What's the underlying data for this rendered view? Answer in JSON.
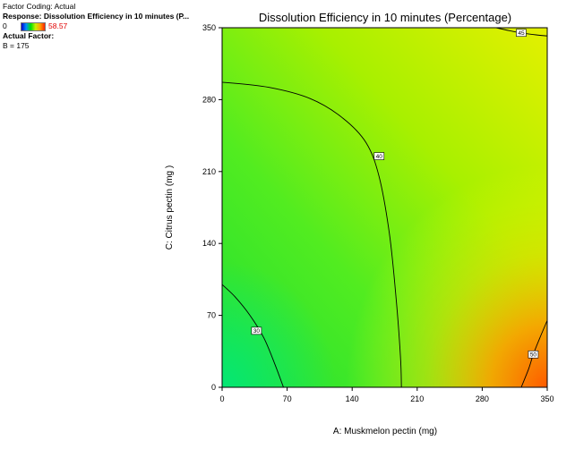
{
  "legend": {
    "coding": "Factor Coding: Actual",
    "response": "Response: Dissolution Efficiency in 10 minutes  (P...",
    "scale_min": "0",
    "scale_max": "58.57",
    "actual_factor_heading": "Actual Factor:",
    "actual_factor_value": "B = 175"
  },
  "chart_data": {
    "type": "contour",
    "title": "Dissolution Efficiency in 10 minutes  (Percentage)",
    "xlabel": "A: Muskmelon pectin (mg)",
    "ylabel": "C: Citrus pectin (mg )",
    "xlim": [
      0,
      350
    ],
    "ylim": [
      0,
      350
    ],
    "xticks": [
      "0",
      "70",
      "140",
      "210",
      "280",
      "350"
    ],
    "yticks": [
      "0",
      "70",
      "140",
      "210",
      "280",
      "350"
    ],
    "color_range": [
      0,
      58.57
    ],
    "contours": [
      {
        "level": "30",
        "label_at": [
          37,
          55
        ],
        "points": [
          [
            0,
            100
          ],
          [
            14,
            88
          ],
          [
            30,
            70
          ],
          [
            45,
            48
          ],
          [
            57,
            22
          ],
          [
            66,
            0
          ]
        ]
      },
      {
        "level": "40",
        "label_at": [
          169,
          225
        ],
        "points": [
          [
            0,
            297
          ],
          [
            50,
            292
          ],
          [
            95,
            281
          ],
          [
            130,
            262
          ],
          [
            155,
            238
          ],
          [
            169,
            205
          ],
          [
            180,
            150
          ],
          [
            187,
            90
          ],
          [
            192,
            30
          ],
          [
            193,
            0
          ]
        ]
      },
      {
        "level": "45",
        "label_at": [
          322,
          345
        ],
        "points": [
          [
            295,
            350
          ],
          [
            310,
            347
          ],
          [
            322,
            345
          ],
          [
            338,
            343
          ],
          [
            350,
            342
          ]
        ]
      },
      {
        "level": "50",
        "label_at": [
          335,
          32
        ],
        "points": [
          [
            322,
            0
          ],
          [
            330,
            18
          ],
          [
            335,
            32
          ],
          [
            342,
            48
          ],
          [
            350,
            65
          ]
        ]
      }
    ]
  }
}
